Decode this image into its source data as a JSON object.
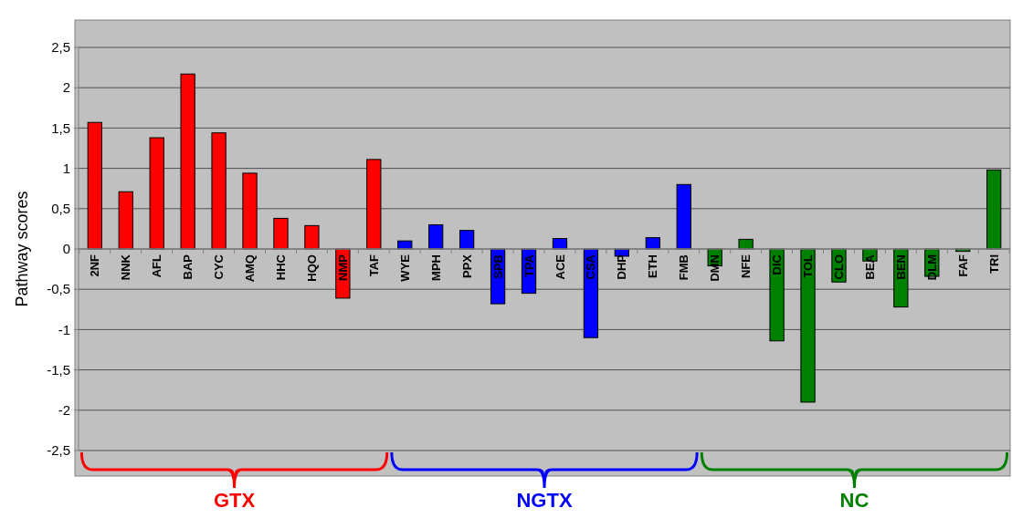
{
  "chart_data": {
    "type": "bar",
    "ylabel": "Pathway scores",
    "categories": [
      "2NF",
      "NNK",
      "AFL",
      "BAP",
      "CYC",
      "AMQ",
      "HHC",
      "HQO",
      "NMP",
      "TAF",
      "WYE",
      "MPH",
      "PPX",
      "SPB",
      "TPA",
      "ACE",
      "CSA",
      "DHP",
      "ETH",
      "FMB",
      "DMN",
      "NFE",
      "DIC",
      "TOL",
      "CLO",
      "BEA",
      "BEN",
      "DLM",
      "FAF",
      "TRI"
    ],
    "values": [
      1.57,
      0.71,
      1.38,
      2.17,
      1.44,
      0.94,
      0.38,
      0.29,
      -0.61,
      1.11,
      0.1,
      0.3,
      0.23,
      -0.68,
      -0.55,
      0.13,
      -1.1,
      -0.09,
      0.14,
      0.8,
      -0.21,
      0.12,
      -1.14,
      -1.9,
      -0.41,
      -0.15,
      -0.72,
      -0.34,
      -0.03,
      0.98
    ],
    "colors": [
      "#ff0000",
      "#ff0000",
      "#ff0000",
      "#ff0000",
      "#ff0000",
      "#ff0000",
      "#ff0000",
      "#ff0000",
      "#ff0000",
      "#ff0000",
      "#0000ff",
      "#0000ff",
      "#0000ff",
      "#0000ff",
      "#0000ff",
      "#0000ff",
      "#0000ff",
      "#0000ff",
      "#0000ff",
      "#0000ff",
      "#008000",
      "#008000",
      "#008000",
      "#008000",
      "#008000",
      "#008000",
      "#008000",
      "#008000",
      "#008000",
      "#008000"
    ],
    "ylim": [
      -2.5,
      2.5
    ],
    "yticks": [
      {
        "value": 2.5,
        "label": "2,5"
      },
      2,
      {
        "value": 1.5,
        "label": "1,5"
      },
      1,
      {
        "value": 0.5,
        "label": "0,5"
      },
      0,
      {
        "value": -0.5,
        "label": "-0,5"
      },
      -1,
      {
        "value": -1.5,
        "label": "-1,5"
      },
      -2,
      {
        "value": -2.5,
        "label": "-2,5"
      }
    ],
    "grid": "y",
    "annotations": [
      "GTX",
      "NGTX",
      "NC"
    ]
  }
}
